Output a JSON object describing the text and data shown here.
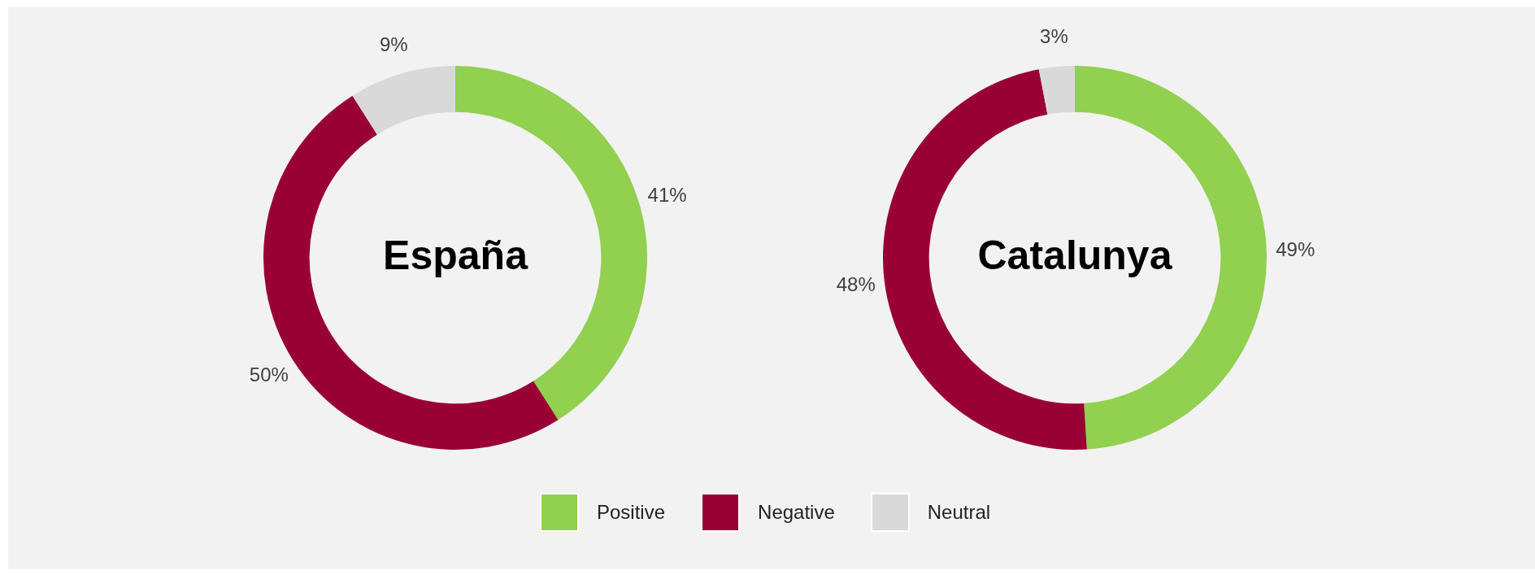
{
  "chart_data": [
    {
      "type": "donut",
      "title": "España",
      "categories": [
        null,
        null,
        null
      ],
      "values": [
        41,
        50,
        9
      ],
      "value_labels": [
        "41%",
        "50%",
        "9%"
      ],
      "colors": [
        "#92d050",
        "#990033",
        "#d9d9d9"
      ]
    },
    {
      "type": "donut",
      "title": "Catalunya",
      "categories": [
        "Positive",
        "Negative",
        "Neutral"
      ],
      "values": [
        49,
        48,
        3
      ],
      "value_labels": [
        "49%",
        "48%",
        "3%"
      ],
      "colors": [
        "#92d050",
        "#990033",
        "#d9d9d9"
      ],
      "legend": "bottom"
    }
  ]
}
